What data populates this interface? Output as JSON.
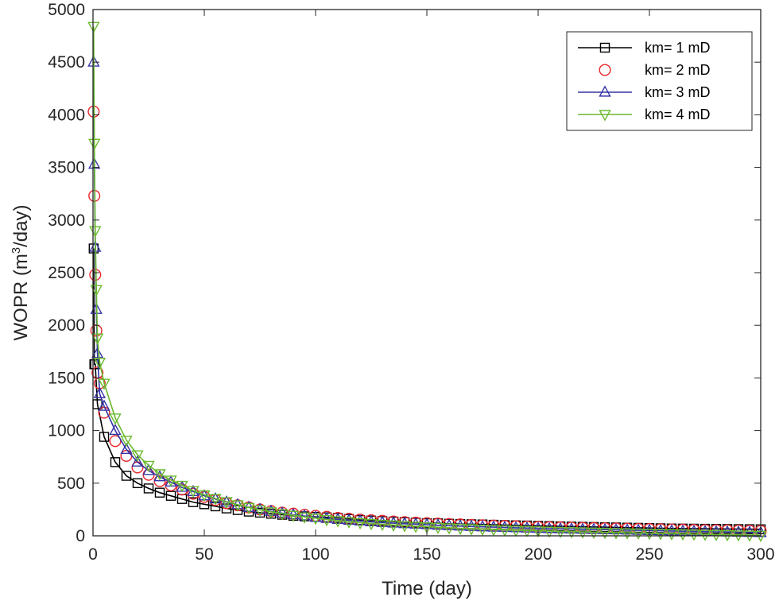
{
  "chart_data": {
    "type": "line",
    "xlabel": "Time (day)",
    "ylabel_main": "WOPR (m",
    "ylabel_sup": "3",
    "ylabel_tail": "/day)",
    "xlim": [
      0,
      300
    ],
    "ylim": [
      0,
      5000
    ],
    "xticks": [
      0,
      50,
      100,
      150,
      200,
      250,
      300
    ],
    "yticks": [
      0,
      500,
      1000,
      1500,
      2000,
      2500,
      3000,
      3500,
      4000,
      4500,
      5000
    ],
    "legend_position": "top-right",
    "series": [
      {
        "name": "km= 1 mD",
        "color": "#000000",
        "marker": "square",
        "line": true,
        "x": [
          0.3,
          0.6,
          1,
          2,
          5,
          10,
          15,
          20,
          25,
          30,
          35,
          40,
          45,
          50,
          55,
          60,
          65,
          70,
          75,
          80,
          85,
          90,
          95,
          100,
          105,
          110,
          115,
          120,
          125,
          130,
          135,
          140,
          145,
          150,
          155,
          160,
          165,
          170,
          175,
          180,
          185,
          190,
          195,
          200,
          205,
          210,
          215,
          220,
          225,
          230,
          235,
          240,
          245,
          250,
          255,
          260,
          265,
          270,
          275,
          280,
          285,
          290,
          295,
          300
        ],
        "values": [
          2730,
          1630,
          1630,
          1250,
          940,
          700,
          570,
          500,
          450,
          410,
          380,
          350,
          320,
          300,
          280,
          260,
          245,
          230,
          220,
          210,
          200,
          190,
          185,
          180,
          175,
          170,
          160,
          150,
          145,
          140,
          135,
          130,
          125,
          120,
          120,
          115,
          112,
          110,
          108,
          105,
          102,
          100,
          98,
          95,
          93,
          90,
          88,
          86,
          84,
          82,
          80,
          78,
          76,
          74,
          72,
          70,
          69,
          68,
          67,
          66,
          65,
          64,
          63,
          62
        ]
      },
      {
        "name": "km= 2 mD",
        "color": "#e8262b",
        "marker": "circle",
        "line": false,
        "x": [
          0.3,
          0.6,
          1,
          1.5,
          2,
          3,
          5,
          10,
          15,
          20,
          25,
          30,
          35,
          40,
          45,
          50,
          55,
          60,
          65,
          70,
          75,
          80,
          85,
          90,
          95,
          100,
          105,
          110,
          115,
          120,
          125,
          130,
          135,
          140,
          145,
          150,
          155,
          160,
          165,
          170,
          175,
          180,
          185,
          190,
          195,
          200,
          205,
          210,
          215,
          220,
          225,
          230,
          235,
          240,
          245,
          250,
          255,
          260,
          265,
          270,
          275,
          280,
          285,
          290,
          295,
          300
        ],
        "values": [
          4030,
          3230,
          2480,
          1950,
          1550,
          1450,
          1170,
          900,
          760,
          650,
          580,
          520,
          480,
          440,
          400,
          370,
          340,
          310,
          290,
          270,
          250,
          235,
          220,
          210,
          200,
          190,
          180,
          170,
          162,
          155,
          148,
          142,
          136,
          130,
          125,
          120,
          116,
          112,
          108,
          104,
          100,
          97,
          94,
          91,
          88,
          85,
          82,
          80,
          78,
          76,
          74,
          72,
          70,
          68,
          66,
          64,
          62,
          60,
          58,
          56,
          55,
          54,
          52,
          50,
          48,
          46
        ]
      },
      {
        "name": "km= 3 mD",
        "color": "#3535a5",
        "marker": "triangle-up",
        "line": true,
        "x": [
          0.3,
          0.6,
          1,
          1.5,
          2,
          3,
          5,
          10,
          15,
          20,
          25,
          30,
          35,
          40,
          45,
          50,
          55,
          60,
          65,
          70,
          75,
          80,
          85,
          90,
          95,
          100,
          105,
          110,
          115,
          120,
          125,
          130,
          135,
          140,
          145,
          150,
          155,
          160,
          165,
          170,
          175,
          180,
          185,
          190,
          195,
          200,
          205,
          210,
          215,
          220,
          225,
          230,
          235,
          240,
          245,
          250,
          255,
          260,
          265,
          270,
          275,
          280,
          285,
          290,
          295,
          300
        ],
        "values": [
          4500,
          3530,
          2740,
          2150,
          1730,
          1350,
          1230,
          1000,
          820,
          700,
          620,
          560,
          510,
          460,
          420,
          380,
          350,
          320,
          295,
          270,
          250,
          232,
          215,
          200,
          188,
          175,
          165,
          155,
          147,
          140,
          133,
          126,
          120,
          115,
          110,
          105,
          100,
          96,
          92,
          88,
          85,
          82,
          79,
          76,
          73,
          70,
          68,
          66,
          64,
          62,
          60,
          58,
          56,
          54,
          52,
          50,
          48,
          46,
          44,
          42,
          40,
          38,
          36,
          34,
          32,
          30
        ]
      },
      {
        "name": "km= 4 mD",
        "color": "#6ab92e",
        "marker": "triangle-down",
        "line": true,
        "x": [
          0.3,
          0.6,
          1,
          1.5,
          2,
          3,
          5,
          10,
          15,
          20,
          25,
          30,
          35,
          40,
          45,
          50,
          55,
          60,
          65,
          70,
          75,
          80,
          85,
          90,
          95,
          100,
          105,
          110,
          115,
          120,
          125,
          130,
          135,
          140,
          145,
          150,
          155,
          160,
          165,
          170,
          175,
          180,
          185,
          190,
          195,
          200,
          205,
          210,
          215,
          220,
          225,
          230,
          235,
          240,
          245,
          250,
          255,
          260,
          265,
          270,
          275,
          280,
          285,
          290,
          295,
          300
        ],
        "values": [
          4840,
          3730,
          2900,
          2340,
          1880,
          1650,
          1450,
          1120,
          910,
          770,
          670,
          590,
          530,
          480,
          430,
          390,
          355,
          325,
          295,
          270,
          248,
          228,
          210,
          195,
          180,
          168,
          155,
          144,
          134,
          125,
          117,
          110,
          103,
          97,
          91,
          86,
          81,
          76,
          72,
          68,
          64,
          60,
          57,
          54,
          51,
          48,
          45,
          42,
          40,
          38,
          35,
          33,
          31,
          29,
          27,
          25,
          23,
          21,
          19,
          17,
          15,
          13,
          11,
          9,
          7,
          5
        ]
      }
    ]
  }
}
